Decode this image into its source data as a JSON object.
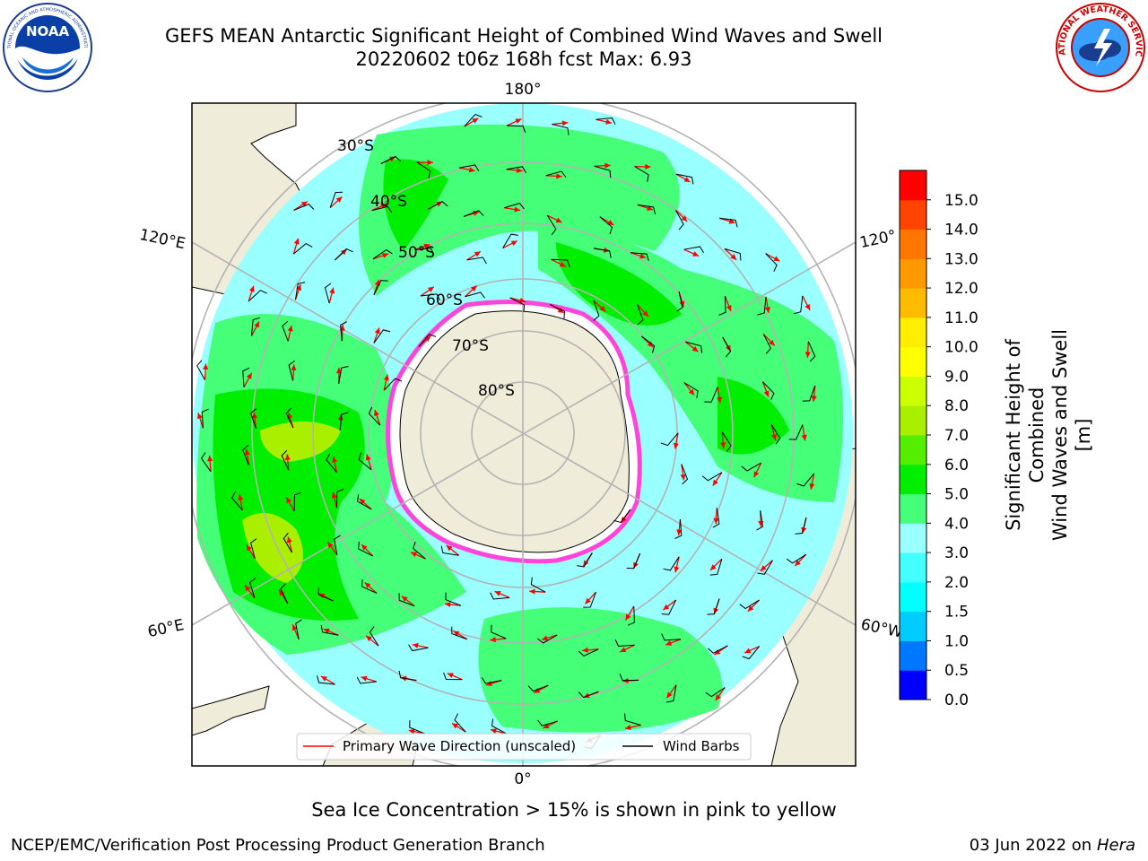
{
  "header": {
    "title_line1": "GEFS MEAN Antarctic Significant Height of Combined Wind Waves and Swell",
    "title_line2": "20220602 t06z 168h fcst   Max: 6.93"
  },
  "logos": {
    "left": {
      "icon": "noaa-logo",
      "text": "NOAA"
    },
    "right": {
      "icon": "nws-logo",
      "text": "NATIONAL WEATHER SERVICE"
    }
  },
  "map": {
    "projection": "south-polar-stereographic",
    "longitude_labels": {
      "top": "180°",
      "bottom": "0°",
      "left_upper": "120°E",
      "left_lower": "60°E",
      "right_upper": "120°",
      "right_lower": "60°W"
    },
    "latitude_labels": [
      "30°S",
      "40°S",
      "50°S",
      "60°S",
      "70°S",
      "80°S"
    ],
    "legend": {
      "primary": "Primary Wave Direction (unscaled)",
      "primary_color": "#ff0000",
      "secondary": "Wind Barbs",
      "secondary_color": "#000000"
    }
  },
  "colorbar": {
    "label_line1": "Significant Height of Combined",
    "label_line2": "Wind Waves and Swell [m]",
    "ticks": [
      "0.0",
      "0.5",
      "1.0",
      "1.5",
      "2.0",
      "3.0",
      "4.0",
      "5.0",
      "6.0",
      "7.0",
      "8.0",
      "9.0",
      "10.0",
      "11.0",
      "12.0",
      "13.0",
      "14.0",
      "15.0"
    ],
    "colors": [
      "#0000ff",
      "#0077ff",
      "#00ccff",
      "#00ffff",
      "#44ffff",
      "#99ffff",
      "#44ff77",
      "#00ee00",
      "#55ee00",
      "#aaee00",
      "#ccff00",
      "#ffff00",
      "#ffee00",
      "#ffbb00",
      "#ff9900",
      "#ff7700",
      "#ff4400",
      "#ff0000"
    ]
  },
  "footer": {
    "caption": "Sea Ice Concentration > 15% is shown in pink to yellow",
    "credit": "NCEP/EMC/Verification Post Processing Product Generation Branch",
    "date": "03 Jun 2022 on",
    "system": "Hera"
  }
}
